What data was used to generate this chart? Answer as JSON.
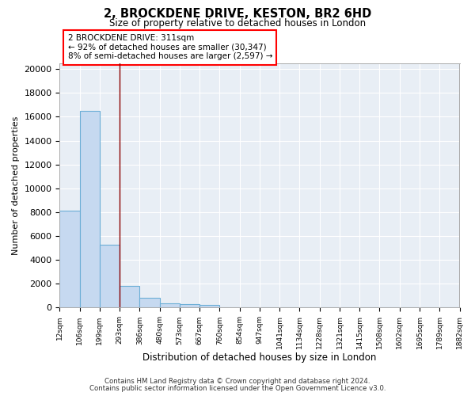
{
  "title": "2, BROCKDENE DRIVE, KESTON, BR2 6HD",
  "subtitle": "Size of property relative to detached houses in London",
  "xlabel": "Distribution of detached houses by size in London",
  "ylabel": "Number of detached properties",
  "bar_values": [
    8100,
    16500,
    5300,
    1850,
    800,
    350,
    280,
    220,
    0,
    0,
    0,
    0,
    0,
    0,
    0,
    0,
    0,
    0,
    0,
    0
  ],
  "xtick_labels": [
    "12sqm",
    "106sqm",
    "199sqm",
    "293sqm",
    "386sqm",
    "480sqm",
    "573sqm",
    "667sqm",
    "760sqm",
    "854sqm",
    "947sqm",
    "1041sqm",
    "1134sqm",
    "1228sqm",
    "1321sqm",
    "1415sqm",
    "1508sqm",
    "1602sqm",
    "1695sqm",
    "1789sqm",
    "1882sqm"
  ],
  "bar_color": "#c6d9f0",
  "bar_edge_color": "#6baed6",
  "background_color": "#e8eef5",
  "grid_color": "#ffffff",
  "red_line_x": 3.0,
  "annotation_text": "2 BROCKDENE DRIVE: 311sqm\n← 92% of detached houses are smaller (30,347)\n8% of semi-detached houses are larger (2,597) →",
  "ylim_max": 20500,
  "yticks": [
    0,
    2000,
    4000,
    6000,
    8000,
    10000,
    12000,
    14000,
    16000,
    18000,
    20000
  ],
  "footer_line1": "Contains HM Land Registry data © Crown copyright and database right 2024.",
  "footer_line2": "Contains public sector information licensed under the Open Government Licence v3.0.",
  "fig_width": 6.0,
  "fig_height": 5.0,
  "dpi": 100
}
